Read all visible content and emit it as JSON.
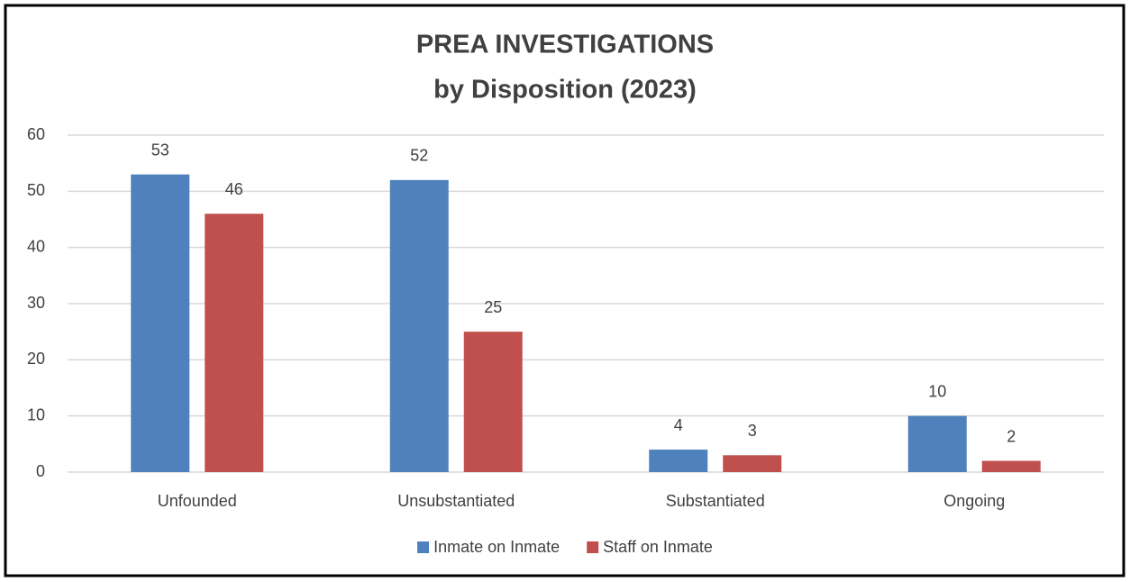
{
  "chart_data": {
    "type": "bar",
    "title": "PREA INVESTIGATIONS",
    "subtitle": "by Disposition (2023)",
    "categories": [
      "Unfounded",
      "Unsubstantiated",
      "Substantiated",
      "Ongoing"
    ],
    "series": [
      {
        "name": "Inmate on Inmate",
        "color": "#4f81bd",
        "values": [
          53,
          52,
          4,
          10
        ]
      },
      {
        "name": "Staff on Inmate",
        "color": "#c0504d",
        "values": [
          46,
          25,
          3,
          2
        ]
      }
    ],
    "ylim": [
      0,
      60
    ],
    "yticks": [
      0,
      10,
      20,
      30,
      40,
      50,
      60
    ],
    "grid": true,
    "legend": "bottom"
  }
}
